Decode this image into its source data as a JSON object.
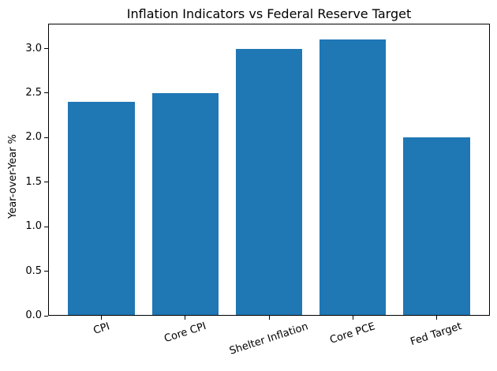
{
  "chart_data": {
    "type": "bar",
    "title": "Inflation Indicators vs Federal Reserve Target",
    "xlabel": "",
    "ylabel": "Year-over-Year %",
    "categories": [
      "CPI",
      "Core CPI",
      "Shelter Inflation",
      "Core PCE",
      "Fed Target"
    ],
    "values": [
      2.4,
      2.5,
      3.0,
      3.1,
      2.0
    ],
    "yticks": [
      0.0,
      0.5,
      1.0,
      1.5,
      2.0,
      2.5,
      3.0
    ],
    "ytick_labels": [
      "0.0",
      "0.5",
      "1.0",
      "1.5",
      "2.0",
      "2.5",
      "3.0"
    ],
    "ylim": [
      0,
      3.28
    ],
    "bar_color": "#1f77b4",
    "text_color": "#000000",
    "spine_color": "#000000",
    "grid": false,
    "legend_position": "none",
    "x_tick_rotation_deg": 18
  }
}
